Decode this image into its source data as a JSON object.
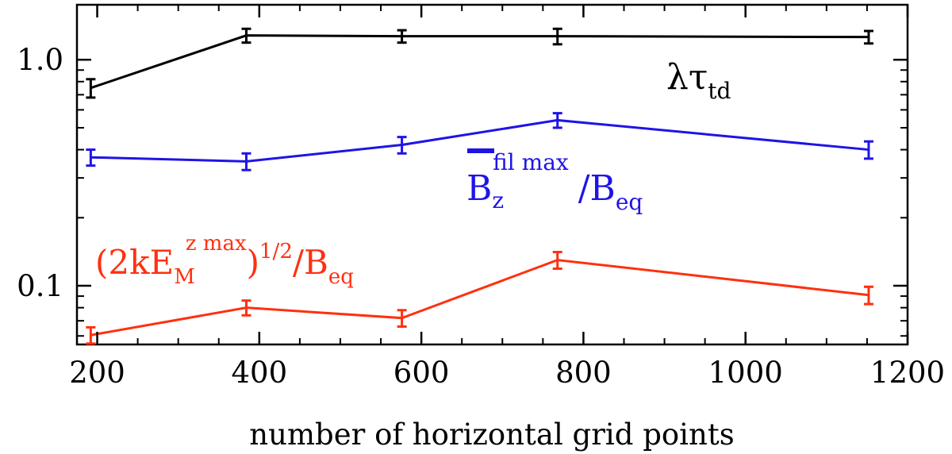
{
  "chart_data": {
    "type": "line",
    "title": "",
    "xlabel": "number of horizontal grid points",
    "ylabel": "",
    "xlim": [
      175,
      1200
    ],
    "ylim": [
      0.055,
      1.75
    ],
    "yscale": "log",
    "grid": false,
    "x_ticks": [
      200,
      400,
      600,
      800,
      1000,
      1200
    ],
    "x_tick_labels": [
      "200",
      "400",
      "600",
      "800",
      "1000",
      "1200"
    ],
    "y_ticks": [
      0.1,
      1.0
    ],
    "y_tick_labels": [
      "0.1",
      "1.0"
    ],
    "x": [
      192,
      384,
      576,
      768,
      1152
    ],
    "series": [
      {
        "name": "lambda_tau_td",
        "color": "#000000",
        "values": [
          0.75,
          1.28,
          1.27,
          1.27,
          1.26
        ],
        "err": [
          0.07,
          0.09,
          0.08,
          0.1,
          0.08
        ],
        "label": {
          "main": "λτ",
          "sub": "td"
        }
      },
      {
        "name": "Bz_fil_max_over_Beq",
        "color": "#1f14e6",
        "values": [
          0.37,
          0.355,
          0.42,
          0.54,
          0.4
        ],
        "err": [
          0.03,
          0.03,
          0.035,
          0.04,
          0.035
        ],
        "label": {
          "main": "B",
          "sub": "z",
          "sup": "fil max",
          "tail": "/B",
          "tail_sub": "eq"
        }
      },
      {
        "name": "sqrt_2kEM_over_Beq",
        "color": "#ff3010",
        "values": [
          0.0605,
          0.08,
          0.072,
          0.13,
          0.091
        ],
        "err": [
          0.005,
          0.006,
          0.006,
          0.011,
          0.008
        ],
        "label": {
          "open": "(2kE",
          "sub": "M",
          "sup": "z max",
          "close": ")",
          "power": "1/2",
          "tail": "/B",
          "tail_sub": "eq"
        }
      }
    ]
  }
}
